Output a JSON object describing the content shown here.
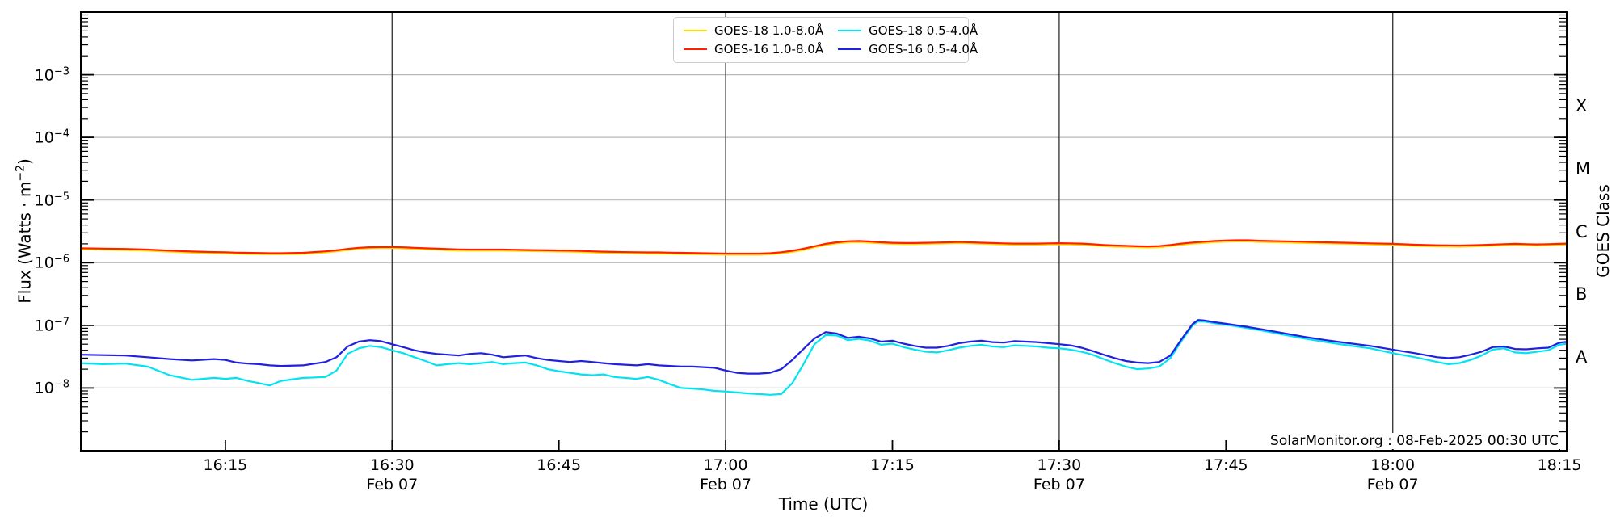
{
  "figure": {
    "background": "#ffffff"
  },
  "axes": {
    "x": {
      "title": "Time (UTC)",
      "ticks": [
        {
          "minute": 15,
          "label": "16:15"
        },
        {
          "minute": 30,
          "label": "16:30",
          "date": "Feb 07"
        },
        {
          "minute": 45,
          "label": "16:45"
        },
        {
          "minute": 60,
          "label": "17:00",
          "date": "Feb 07"
        },
        {
          "minute": 75,
          "label": "17:15"
        },
        {
          "minute": 90,
          "label": "17:30",
          "date": "Feb 07"
        },
        {
          "minute": 105,
          "label": "17:45"
        },
        {
          "minute": 120,
          "label": "18:00",
          "date": "Feb 07"
        },
        {
          "minute": 135,
          "label": "18:15"
        }
      ]
    },
    "y_left": {
      "title_prefix": "Flux (Watts · m",
      "title_sup": "−2",
      "title_suffix": ")",
      "tick_base": "10",
      "ticks": [
        {
          "log": -3,
          "exp_label": "−3"
        },
        {
          "log": -4,
          "exp_label": "−4"
        },
        {
          "log": -5,
          "exp_label": "−5"
        },
        {
          "log": -6,
          "exp_label": "−6"
        },
        {
          "log": -7,
          "exp_label": "−7"
        },
        {
          "log": -8,
          "exp_label": "−8"
        }
      ]
    },
    "y_right": {
      "title": "GOES Class",
      "classes": [
        {
          "label": "X",
          "log_center": -3.5
        },
        {
          "label": "M",
          "log_center": -4.5
        },
        {
          "label": "C",
          "log_center": -5.5
        },
        {
          "label": "B",
          "log_center": -6.5
        },
        {
          "label": "A",
          "log_center": -7.5
        }
      ]
    }
  },
  "legend": {
    "items": [
      {
        "label": "GOES-18 1.0-8.0Å",
        "color": "#ffdf00"
      },
      {
        "label": "GOES-16 1.0-8.0Å",
        "color": "#ff2000"
      },
      {
        "label": "GOES-18 0.5-4.0Å",
        "color": "#00e4f2"
      },
      {
        "label": "GOES-16 0.5-4.0Å",
        "color": "#2020e0"
      }
    ]
  },
  "attribution": "SolarMonitor.org : 08-Feb-2025 00:30 UTC",
  "chart_data": {
    "type": "line",
    "title": "",
    "xlabel": "Time (UTC)",
    "ylabel": "Flux (Watts · m−2)",
    "ylabel_right": "GOES Class",
    "x_axis": {
      "unit": "minutes after 16:00 UTC on 2025 Feb 07",
      "range": [
        2,
        135.65
      ],
      "tick_minutes": [
        15,
        30,
        45,
        60,
        75,
        90,
        105,
        120,
        135
      ],
      "date_gridline_minutes": [
        30,
        60,
        90,
        120
      ]
    },
    "y_axis": {
      "scale": "log10",
      "range_watts_m2": [
        1e-09,
        0.01
      ],
      "decade_gridlines": [
        1e-08,
        1e-07,
        1e-06,
        1e-05,
        0.0001,
        0.001
      ],
      "grid": true
    },
    "legend_position": "top center",
    "times_min": [
      2,
      4,
      6,
      8,
      10,
      12,
      14,
      15,
      16,
      17,
      18,
      19,
      20,
      22,
      24,
      25,
      26,
      27,
      28,
      29,
      30,
      31,
      32,
      33,
      34,
      35,
      36,
      37,
      38,
      39,
      40,
      41,
      42,
      43,
      44,
      45,
      46,
      47,
      48,
      49,
      50,
      52,
      53,
      54,
      55,
      56,
      57,
      58,
      59,
      60,
      61,
      62,
      63,
      64,
      65,
      66,
      67,
      68,
      69,
      70,
      71,
      72,
      73,
      74,
      75,
      76,
      77,
      78,
      79,
      80,
      81,
      82,
      83,
      84,
      85,
      86,
      87,
      88,
      89,
      90,
      91,
      92,
      93,
      94,
      95,
      96,
      97,
      98,
      99,
      100,
      101,
      102,
      102.5,
      103,
      104,
      105,
      106,
      107,
      108,
      110,
      112,
      114,
      116,
      118,
      120,
      122,
      124,
      125,
      126,
      127,
      128,
      129,
      130,
      131,
      132,
      133,
      134,
      135,
      135.6
    ],
    "series": [
      {
        "name": "GOES-18 1.0-8.0Å",
        "color": "#ffdf00",
        "unit_scale": 1e-06,
        "values": [
          1.63,
          1.61,
          1.59,
          1.56,
          1.5,
          1.45,
          1.42,
          1.41,
          1.39,
          1.38,
          1.37,
          1.36,
          1.36,
          1.38,
          1.46,
          1.52,
          1.59,
          1.66,
          1.7,
          1.71,
          1.71,
          1.69,
          1.66,
          1.63,
          1.61,
          1.58,
          1.56,
          1.56,
          1.56,
          1.56,
          1.56,
          1.55,
          1.54,
          1.53,
          1.52,
          1.51,
          1.5,
          1.48,
          1.46,
          1.44,
          1.43,
          1.41,
          1.4,
          1.4,
          1.39,
          1.38,
          1.37,
          1.36,
          1.35,
          1.34,
          1.34,
          1.34,
          1.34,
          1.36,
          1.41,
          1.49,
          1.6,
          1.76,
          1.92,
          2.04,
          2.11,
          2.13,
          2.09,
          2.04,
          2.0,
          1.98,
          1.98,
          2.0,
          2.02,
          2.04,
          2.06,
          2.04,
          2.01,
          1.98,
          1.96,
          1.94,
          1.94,
          1.94,
          1.96,
          1.97,
          1.96,
          1.94,
          1.89,
          1.84,
          1.8,
          1.79,
          1.76,
          1.75,
          1.77,
          1.84,
          1.94,
          2.02,
          2.04,
          2.07,
          2.13,
          2.17,
          2.19,
          2.19,
          2.15,
          2.11,
          2.07,
          2.04,
          2.0,
          1.96,
          1.92,
          1.86,
          1.82,
          1.81,
          1.8,
          1.82,
          1.84,
          1.87,
          1.9,
          1.92,
          1.9,
          1.88,
          1.9,
          1.92,
          1.94
        ]
      },
      {
        "name": "GOES-16 1.0-8.0Å",
        "color": "#ff2000",
        "unit_scale": 1e-06,
        "values": [
          1.7,
          1.68,
          1.66,
          1.62,
          1.56,
          1.51,
          1.48,
          1.47,
          1.45,
          1.44,
          1.43,
          1.42,
          1.42,
          1.44,
          1.52,
          1.58,
          1.66,
          1.73,
          1.77,
          1.78,
          1.78,
          1.76,
          1.73,
          1.7,
          1.68,
          1.65,
          1.63,
          1.62,
          1.62,
          1.62,
          1.62,
          1.61,
          1.6,
          1.59,
          1.58,
          1.57,
          1.56,
          1.54,
          1.52,
          1.5,
          1.49,
          1.47,
          1.46,
          1.46,
          1.45,
          1.44,
          1.43,
          1.42,
          1.41,
          1.4,
          1.4,
          1.4,
          1.4,
          1.42,
          1.47,
          1.55,
          1.67,
          1.83,
          2.0,
          2.12,
          2.2,
          2.22,
          2.18,
          2.12,
          2.08,
          2.06,
          2.06,
          2.08,
          2.1,
          2.12,
          2.15,
          2.12,
          2.09,
          2.06,
          2.04,
          2.02,
          2.02,
          2.02,
          2.04,
          2.05,
          2.04,
          2.02,
          1.97,
          1.92,
          1.88,
          1.86,
          1.83,
          1.82,
          1.84,
          1.92,
          2.02,
          2.1,
          2.13,
          2.16,
          2.22,
          2.26,
          2.28,
          2.28,
          2.24,
          2.2,
          2.16,
          2.12,
          2.08,
          2.04,
          2.0,
          1.94,
          1.9,
          1.89,
          1.88,
          1.9,
          1.92,
          1.95,
          1.98,
          2.0,
          1.98,
          1.96,
          1.98,
          2.0,
          2.02
        ]
      },
      {
        "name": "GOES-18 0.5-4.0Å",
        "color": "#00e4f2",
        "unit_scale": 1e-08,
        "values": [
          2.5,
          2.4,
          2.45,
          2.2,
          1.6,
          1.35,
          1.45,
          1.4,
          1.45,
          1.3,
          1.2,
          1.1,
          1.3,
          1.45,
          1.5,
          1.9,
          3.5,
          4.3,
          4.7,
          4.5,
          4.0,
          3.6,
          3.1,
          2.7,
          2.3,
          2.4,
          2.5,
          2.4,
          2.5,
          2.6,
          2.4,
          2.5,
          2.55,
          2.3,
          2.0,
          1.85,
          1.75,
          1.65,
          1.6,
          1.65,
          1.5,
          1.4,
          1.5,
          1.35,
          1.15,
          1.0,
          0.98,
          0.95,
          0.9,
          0.88,
          0.85,
          0.82,
          0.8,
          0.78,
          0.8,
          1.2,
          2.4,
          5.0,
          7.0,
          6.9,
          5.8,
          6.1,
          5.7,
          4.9,
          5.1,
          4.5,
          4.1,
          3.8,
          3.7,
          4.0,
          4.4,
          4.7,
          4.9,
          4.6,
          4.5,
          4.8,
          4.7,
          4.6,
          4.4,
          4.3,
          4.1,
          3.8,
          3.4,
          2.9,
          2.5,
          2.2,
          2.0,
          2.05,
          2.2,
          3.0,
          5.6,
          10.0,
          11.6,
          11.5,
          10.8,
          10.2,
          9.6,
          9.0,
          8.4,
          7.2,
          6.2,
          5.4,
          4.8,
          4.3,
          3.6,
          3.1,
          2.6,
          2.4,
          2.5,
          2.8,
          3.3,
          4.1,
          4.3,
          3.7,
          3.6,
          3.8,
          4.0,
          4.9,
          5.1
        ]
      },
      {
        "name": "GOES-16 0.5-4.0Å",
        "color": "#2020e0",
        "unit_scale": 1e-08,
        "values": [
          3.4,
          3.35,
          3.3,
          3.1,
          2.9,
          2.75,
          2.9,
          2.8,
          2.55,
          2.45,
          2.4,
          2.3,
          2.25,
          2.3,
          2.6,
          3.1,
          4.6,
          5.5,
          5.8,
          5.6,
          5.0,
          4.5,
          4.0,
          3.7,
          3.5,
          3.4,
          3.3,
          3.5,
          3.6,
          3.4,
          3.1,
          3.2,
          3.3,
          3.0,
          2.8,
          2.7,
          2.6,
          2.7,
          2.6,
          2.5,
          2.4,
          2.3,
          2.4,
          2.3,
          2.25,
          2.2,
          2.2,
          2.15,
          2.1,
          1.9,
          1.75,
          1.7,
          1.7,
          1.75,
          2.0,
          2.8,
          4.2,
          6.2,
          7.8,
          7.4,
          6.3,
          6.6,
          6.2,
          5.5,
          5.7,
          5.1,
          4.7,
          4.4,
          4.4,
          4.7,
          5.2,
          5.5,
          5.7,
          5.4,
          5.3,
          5.6,
          5.5,
          5.4,
          5.2,
          5.0,
          4.8,
          4.4,
          3.9,
          3.4,
          3.0,
          2.7,
          2.55,
          2.5,
          2.6,
          3.3,
          6.0,
          10.5,
          12.2,
          12.0,
          11.2,
          10.6,
          10.0,
          9.4,
          8.8,
          7.6,
          6.6,
          5.8,
          5.2,
          4.7,
          4.1,
          3.6,
          3.1,
          3.0,
          3.1,
          3.4,
          3.8,
          4.5,
          4.6,
          4.2,
          4.15,
          4.3,
          4.4,
          5.3,
          5.45
        ]
      }
    ]
  }
}
